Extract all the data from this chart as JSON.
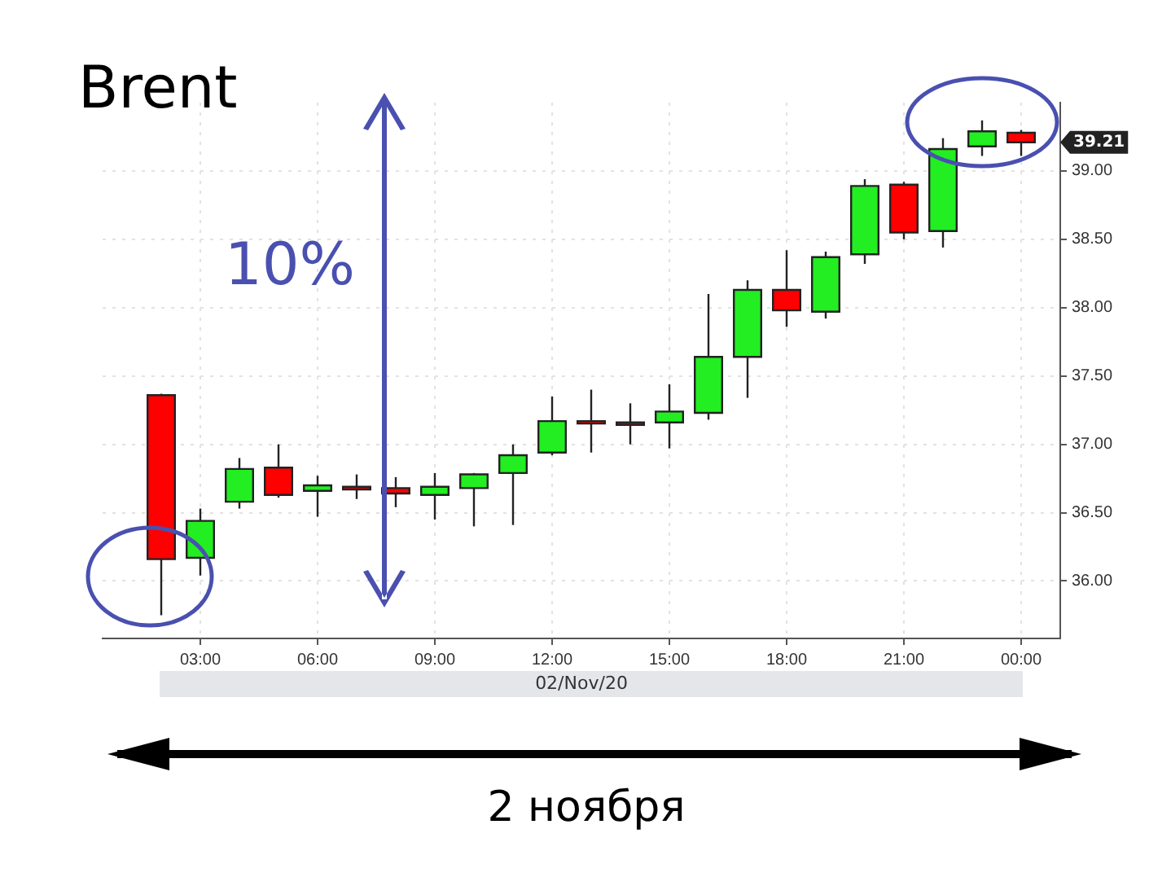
{
  "chart_data": {
    "type": "candlestick",
    "title": "Brent",
    "xlabel": "02/Nov/20",
    "x": [
      2,
      3,
      4,
      5,
      6,
      7,
      8,
      9,
      10,
      11,
      12,
      13,
      14,
      15,
      16,
      17,
      18,
      19,
      20,
      21,
      22,
      23,
      24
    ],
    "ohlc": [
      [
        37.36,
        37.37,
        35.75,
        36.16
      ],
      [
        36.17,
        36.53,
        36.04,
        36.44
      ],
      [
        36.58,
        36.9,
        36.53,
        36.82
      ],
      [
        36.83,
        37.0,
        36.61,
        36.63
      ],
      [
        36.66,
        36.77,
        36.47,
        36.7
      ],
      [
        36.69,
        36.78,
        36.6,
        36.67
      ],
      [
        36.68,
        36.76,
        36.54,
        36.64
      ],
      [
        36.63,
        36.79,
        36.45,
        36.69
      ],
      [
        36.68,
        36.79,
        36.4,
        36.78
      ],
      [
        36.79,
        37.0,
        36.41,
        36.92
      ],
      [
        36.94,
        37.35,
        36.92,
        37.17
      ],
      [
        37.17,
        37.4,
        36.94,
        37.16
      ],
      [
        37.16,
        37.3,
        37.0,
        37.16
      ],
      [
        37.16,
        37.44,
        36.97,
        37.24
      ],
      [
        37.23,
        38.1,
        37.18,
        37.64
      ],
      [
        37.64,
        38.2,
        37.34,
        38.13
      ],
      [
        38.13,
        38.42,
        37.86,
        37.98
      ],
      [
        37.97,
        38.41,
        37.92,
        38.37
      ],
      [
        38.39,
        38.94,
        38.32,
        38.89
      ],
      [
        38.9,
        38.92,
        38.5,
        38.55
      ],
      [
        38.56,
        39.24,
        38.44,
        39.16
      ],
      [
        39.18,
        39.37,
        39.11,
        39.29
      ],
      [
        39.28,
        39.3,
        39.11,
        39.21
      ]
    ],
    "colors": [
      "#ff0000",
      "#22ee22",
      "#22ee22",
      "#ff0000",
      "#22ee22",
      "#ff0000",
      "#ff0000",
      "#22ee22",
      "#22ee22",
      "#22ee22",
      "#22ee22",
      "#ff0000",
      "#ff0000",
      "#22ee22",
      "#22ee22",
      "#22ee22",
      "#ff0000",
      "#22ee22",
      "#22ee22",
      "#ff0000",
      "#22ee22",
      "#22ee22",
      "#ff0000"
    ],
    "xlim": [
      0.5,
      25
    ],
    "xticks": [
      {
        "value": 3,
        "label": "03:00"
      },
      {
        "value": 6,
        "label": "06:00"
      },
      {
        "value": 9,
        "label": "09:00"
      },
      {
        "value": 12,
        "label": "12:00"
      },
      {
        "value": 15,
        "label": "15:00"
      },
      {
        "value": 18,
        "label": "18:00"
      },
      {
        "value": 21,
        "label": "21:00"
      },
      {
        "value": 24,
        "label": "00:00"
      }
    ],
    "ylim": [
      35.58,
      39.5
    ],
    "yticks": [
      {
        "value": 36,
        "label": "36.00"
      },
      {
        "value": 36.5,
        "label": "36.50"
      },
      {
        "value": 37,
        "label": "37.00"
      },
      {
        "value": 37.5,
        "label": "37.50"
      },
      {
        "value": 38,
        "label": "38.00"
      },
      {
        "value": 38.5,
        "label": "38.50"
      },
      {
        "value": 39,
        "label": "39.00"
      }
    ],
    "grid": true,
    "annotations": [
      "10%",
      "39.21",
      "2 ноября"
    ]
  }
}
